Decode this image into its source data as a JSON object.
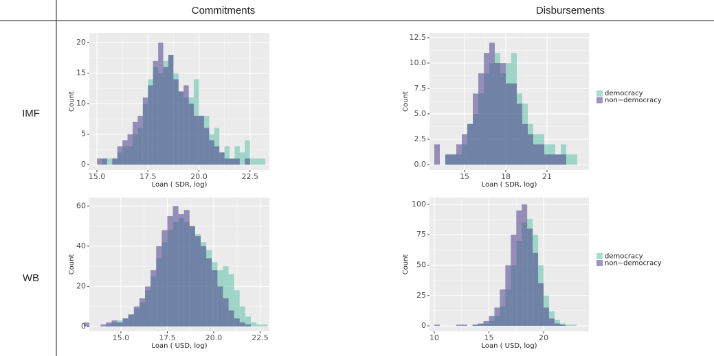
{
  "columns": [
    "Commitments",
    "Disbursements"
  ],
  "rows": [
    "IMF",
    "WB"
  ],
  "chart_data": [
    {
      "type": "histogram",
      "x_label": "Loan ( SDR, log)",
      "y_label": "Count",
      "bins": [
        15.0,
        15.25,
        15.5,
        15.75,
        16.0,
        16.25,
        16.5,
        16.75,
        17.0,
        17.25,
        17.5,
        17.75,
        18.0,
        18.25,
        18.5,
        18.75,
        19.0,
        19.25,
        19.5,
        19.75,
        20.0,
        20.25,
        20.5,
        20.75,
        21.0,
        21.25,
        21.5,
        21.75,
        22.0,
        22.25,
        22.5,
        22.75,
        23.0,
        23.25
      ],
      "series": [
        {
          "color": "#5fc3a8",
          "values": [
            0,
            1,
            1,
            1,
            2,
            3,
            3,
            5,
            6,
            10,
            14,
            16,
            15,
            17,
            18,
            15,
            12,
            11,
            11,
            14,
            8,
            8,
            5,
            6,
            2,
            3,
            1,
            3,
            2,
            4,
            1,
            1,
            1
          ]
        },
        {
          "color": "#4b3f8c",
          "values": [
            1,
            1,
            0,
            1,
            3,
            4,
            5,
            7,
            8,
            11,
            13,
            17,
            20,
            16,
            18,
            14,
            12,
            13,
            10,
            8,
            8,
            6,
            4,
            3,
            2,
            1,
            1,
            1,
            0,
            1,
            0,
            0,
            0
          ]
        }
      ],
      "xlim": [
        14.63,
        23.45
      ],
      "ylim": [
        -0.9,
        21.6
      ],
      "xticks": [
        {
          "value": 15,
          "label": "15.0"
        },
        17.5,
        {
          "value": 20,
          "label": "20.0"
        },
        22.5
      ],
      "yticks": [
        0,
        5,
        10,
        15,
        20
      ],
      "grid": true
    },
    {
      "type": "histogram",
      "x_label": "Loan ( SDR, log)",
      "y_label": "Count",
      "bins": [
        12.8,
        13.2,
        13.6,
        14.0,
        14.4,
        14.8,
        15.2,
        15.6,
        16.0,
        16.4,
        16.8,
        17.2,
        17.6,
        18.0,
        18.4,
        18.8,
        19.2,
        19.6,
        20.0,
        20.4,
        20.8,
        21.2,
        21.6,
        22.0,
        22.4,
        22.8,
        23.2
      ],
      "series": [
        {
          "name": "democracy",
          "color": "#5fc3a8",
          "values": [
            0,
            0,
            1,
            1,
            1,
            2,
            4,
            5,
            7,
            9,
            10,
            11,
            9,
            10,
            11,
            7,
            6,
            4,
            3,
            3,
            2,
            2,
            1,
            2,
            1,
            1
          ]
        },
        {
          "name": "non−democracy",
          "color": "#4b3f8c",
          "values": [
            2,
            0,
            1,
            1,
            2,
            3,
            4,
            7,
            9,
            11,
            12,
            10,
            10,
            8,
            8,
            6,
            4,
            3,
            2,
            2,
            1,
            1,
            1,
            1,
            0,
            0
          ]
        }
      ],
      "xlim": [
        12.45,
        24.05
      ],
      "ylim": [
        -0.54,
        12.97
      ],
      "xticks": [
        15,
        18,
        21
      ],
      "yticks": [
        {
          "value": 0,
          "label": "0.0"
        },
        2.5,
        {
          "value": 5,
          "label": "5.0"
        },
        7.5,
        {
          "value": 10,
          "label": "10.0"
        },
        12.5
      ],
      "grid": true,
      "legend": "right"
    },
    {
      "type": "histogram",
      "x_label": "Loan ( USD, log)",
      "y_label": "Count",
      "bins": [
        13.0,
        13.3,
        13.6,
        13.9,
        14.2,
        14.5,
        14.8,
        15.1,
        15.4,
        15.7,
        16.0,
        16.3,
        16.6,
        16.9,
        17.2,
        17.5,
        17.8,
        18.1,
        18.4,
        18.7,
        19.0,
        19.3,
        19.6,
        19.9,
        20.2,
        20.5,
        20.8,
        21.1,
        21.4,
        21.7,
        22.0,
        22.3,
        22.6,
        22.9
      ],
      "series": [
        {
          "color": "#5fc3a8",
          "values": [
            0,
            0,
            0,
            0,
            1,
            2,
            3,
            4,
            6,
            9,
            12,
            18,
            25,
            34,
            42,
            48,
            52,
            54,
            52,
            50,
            46,
            42,
            38,
            32,
            28,
            30,
            26,
            18,
            10,
            5,
            2,
            1,
            1
          ]
        },
        {
          "color": "#4b3f8c",
          "values": [
            2,
            0,
            0,
            1,
            2,
            3,
            2,
            4,
            6,
            10,
            14,
            20,
            28,
            40,
            48,
            55,
            60,
            56,
            58,
            50,
            45,
            40,
            34,
            28,
            20,
            14,
            8,
            4,
            2,
            1,
            0,
            0,
            0
          ]
        }
      ],
      "xlim": [
        13.3,
        23.0
      ],
      "ylim": [
        -2.4,
        64.2
      ],
      "xticks": [
        {
          "value": 15,
          "label": "15.0"
        },
        17.5,
        {
          "value": 20,
          "label": "20.0"
        },
        22.5
      ],
      "yticks": [
        0,
        20,
        40,
        60
      ],
      "grid": true
    },
    {
      "type": "histogram",
      "x_label": "Loan ( USD, log)",
      "y_label": "Count",
      "bins": [
        10.0,
        10.5,
        11.0,
        11.5,
        12.0,
        12.5,
        13.0,
        13.5,
        14.0,
        14.5,
        15.0,
        15.5,
        16.0,
        16.5,
        17.0,
        17.5,
        18.0,
        18.5,
        19.0,
        19.5,
        20.0,
        20.5,
        21.0,
        21.5,
        22.0,
        22.5,
        23.0,
        23.5
      ],
      "series": [
        {
          "name": "democracy",
          "color": "#5fc3a8",
          "values": [
            0,
            0,
            0,
            0,
            0,
            0,
            0,
            1,
            1,
            2,
            4,
            8,
            16,
            30,
            50,
            70,
            85,
            88,
            75,
            50,
            25,
            12,
            5,
            2,
            1,
            1,
            0
          ]
        },
        {
          "name": "non−democracy",
          "color": "#4b3f8c",
          "values": [
            1,
            0,
            0,
            0,
            1,
            1,
            0,
            1,
            2,
            4,
            8,
            15,
            30,
            50,
            75,
            95,
            100,
            80,
            60,
            35,
            15,
            6,
            2,
            1,
            0,
            0,
            0
          ]
        }
      ],
      "xlim": [
        9.56,
        24.15
      ],
      "ylim": [
        -4.5,
        105.6
      ],
      "xticks": [
        10,
        15,
        20
      ],
      "yticks": [
        0,
        25,
        50,
        75,
        100
      ],
      "grid": true,
      "legend": "right"
    }
  ]
}
